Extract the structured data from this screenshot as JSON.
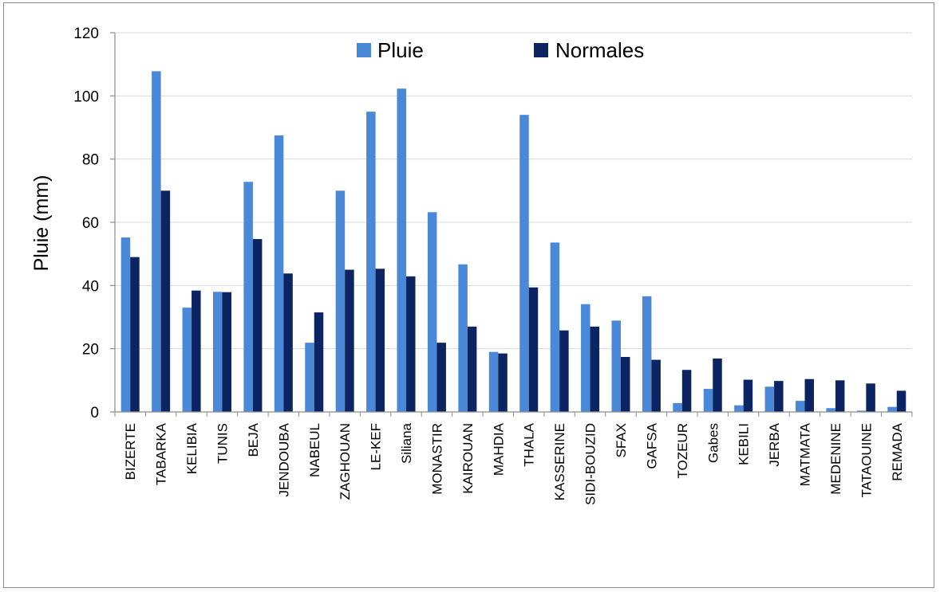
{
  "chart_data": {
    "type": "bar",
    "title": "",
    "xlabel": "",
    "ylabel": "Pluie (mm)",
    "ylim": [
      0,
      120
    ],
    "yticks": [
      0,
      20,
      40,
      60,
      80,
      100,
      120
    ],
    "grid": true,
    "legend_position": "top-center",
    "categories": [
      "BIZERTE",
      "TABARKA",
      "KELIBIA",
      "TUNIS",
      "BEJA",
      "JENDOUBA",
      "NABEUL",
      "ZAGHOUAN",
      "LE-KEF",
      "Siliana",
      "MONASTIR",
      "KAIROUAN",
      "MAHDIA",
      "THALA",
      "KASSERINE",
      "SIDI-BOUZID",
      "SFAX",
      "GAFSA",
      "TOZEUR",
      "Gabes",
      "KEBILI",
      "JERBA",
      "MATMATA",
      "MEDENINE",
      "TATAOUINE",
      "REMADA"
    ],
    "series": [
      {
        "name": "Pluie",
        "color": "#4a88d8",
        "values": [
          55.2,
          107.8,
          33.0,
          38.0,
          72.8,
          87.5,
          21.9,
          70.0,
          95.0,
          102.3,
          63.2,
          46.7,
          19.0,
          94.0,
          53.6,
          34.1,
          28.9,
          36.6,
          2.8,
          7.3,
          2.1,
          8.0,
          3.5,
          1.2,
          0.4,
          1.6
        ]
      },
      {
        "name": "Normales",
        "color": "#0c2461",
        "values": [
          49.0,
          70.0,
          38.4,
          37.9,
          54.7,
          43.8,
          31.5,
          45.0,
          45.3,
          42.9,
          21.9,
          27.0,
          18.5,
          39.4,
          25.8,
          27.0,
          17.4,
          16.5,
          13.3,
          16.9,
          10.2,
          9.8,
          10.4,
          10.0,
          9.0,
          6.7
        ]
      }
    ]
  }
}
